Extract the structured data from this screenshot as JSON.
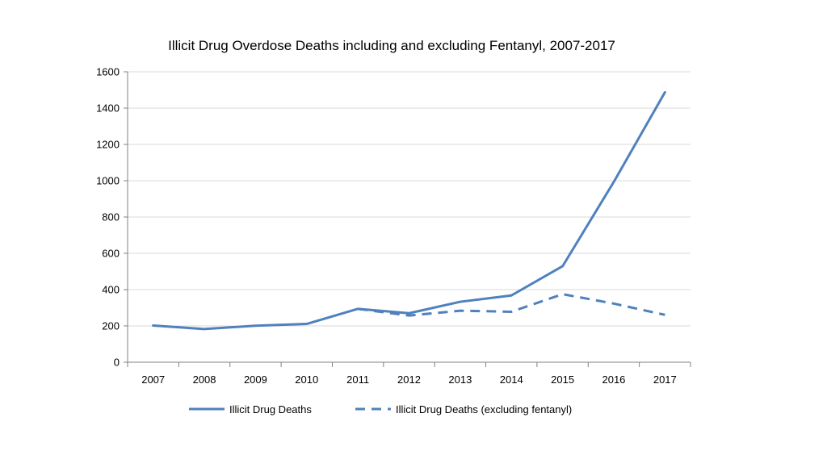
{
  "chart_data": {
    "type": "line",
    "title": "Illicit Drug Overdose Deaths including and excluding Fentanyl, 2007-2017",
    "xlabel": "",
    "ylabel": "",
    "categories": [
      "2007",
      "2008",
      "2009",
      "2010",
      "2011",
      "2012",
      "2013",
      "2014",
      "2015",
      "2016",
      "2017"
    ],
    "y_ticks": [
      "0",
      "200",
      "400",
      "600",
      "800",
      "1000",
      "1200",
      "1400",
      "1600"
    ],
    "ylim": [
      0,
      1600
    ],
    "grid": true,
    "legend_position": "bottom",
    "series": [
      {
        "name": "Illicit Drug Deaths",
        "values": [
          202,
          183,
          201,
          211,
          294,
          270,
          333,
          368,
          529,
          993,
          1487
        ],
        "style": "solid",
        "color": "#4f81bd"
      },
      {
        "name": "Illicit Drug Deaths (excluding fentanyl)",
        "values": [
          null,
          null,
          null,
          null,
          294,
          257,
          284,
          278,
          375,
          323,
          261
        ],
        "style": "dashed",
        "color": "#4f81bd"
      }
    ]
  }
}
